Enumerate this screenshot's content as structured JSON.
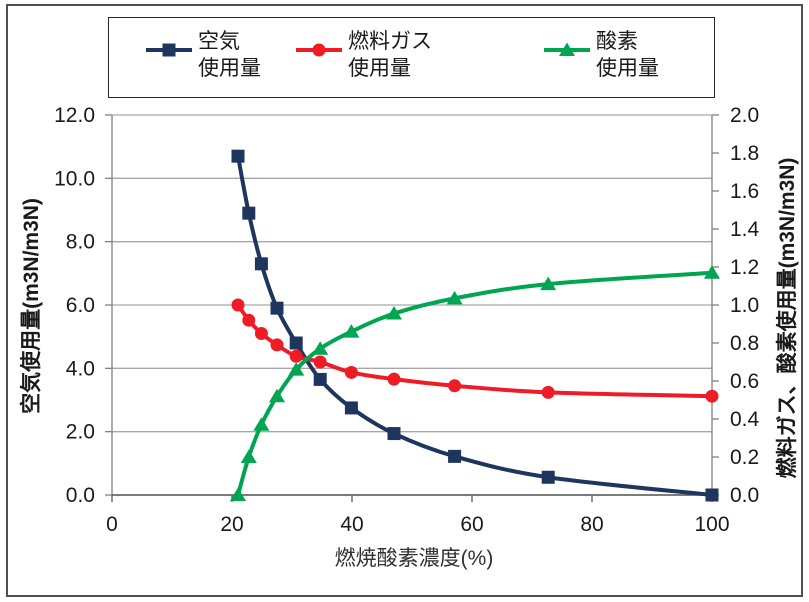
{
  "chart_data": {
    "type": "line",
    "title": "",
    "xlabel": "燃焼酸素濃度(%)",
    "ylabel_left": "空気使用量(m3N/m3N)",
    "ylabel_right": "燃料ガス、酸素使用量(m3N/m3N)",
    "legend_position": "top",
    "grid": true,
    "x_range": [
      0,
      100
    ],
    "x_ticks": [
      0,
      20,
      40,
      60,
      80,
      100
    ],
    "y_left_range": [
      0,
      12
    ],
    "y_left_ticks": [
      12.0,
      10.0,
      8.0,
      6.0,
      4.0,
      2.0,
      0.0
    ],
    "y_right_range": [
      0,
      2
    ],
    "y_right_tick_step": 0.2,
    "x": [
      21,
      22.8,
      24.9,
      27.5,
      30.7,
      34.7,
      39.9,
      47.0,
      57.1,
      72.7,
      100
    ],
    "series": [
      {
        "name": "空気使用量",
        "legend_line1": "空気",
        "legend_line2": "使用量",
        "axis": "left",
        "marker": "square",
        "color": "#1e355e",
        "values": [
          10.7,
          8.9,
          7.3,
          5.9,
          4.8,
          3.65,
          2.75,
          1.94,
          1.22,
          0.56,
          0.0
        ]
      },
      {
        "name": "燃料ガス使用量",
        "legend_line1": "燃料ガス",
        "legend_line2": "使用量",
        "axis": "right",
        "marker": "circle",
        "color": "#ee1c25",
        "values": [
          1.0,
          0.92,
          0.85,
          0.79,
          0.73,
          0.7,
          0.645,
          0.61,
          0.575,
          0.54,
          0.52
        ]
      },
      {
        "name": "酸素使用量",
        "legend_line1": "酸素",
        "legend_line2": "使用量",
        "axis": "right",
        "marker": "triangle",
        "color": "#00a551",
        "values": [
          0.0,
          0.2,
          0.37,
          0.52,
          0.66,
          0.77,
          0.86,
          0.955,
          1.035,
          1.11,
          1.17
        ]
      }
    ],
    "colors": {
      "gridline": "#a6a6a6",
      "axis_line": "#808080",
      "x_axis_line": "#595959",
      "tick_text": "#1a1a1a"
    }
  }
}
